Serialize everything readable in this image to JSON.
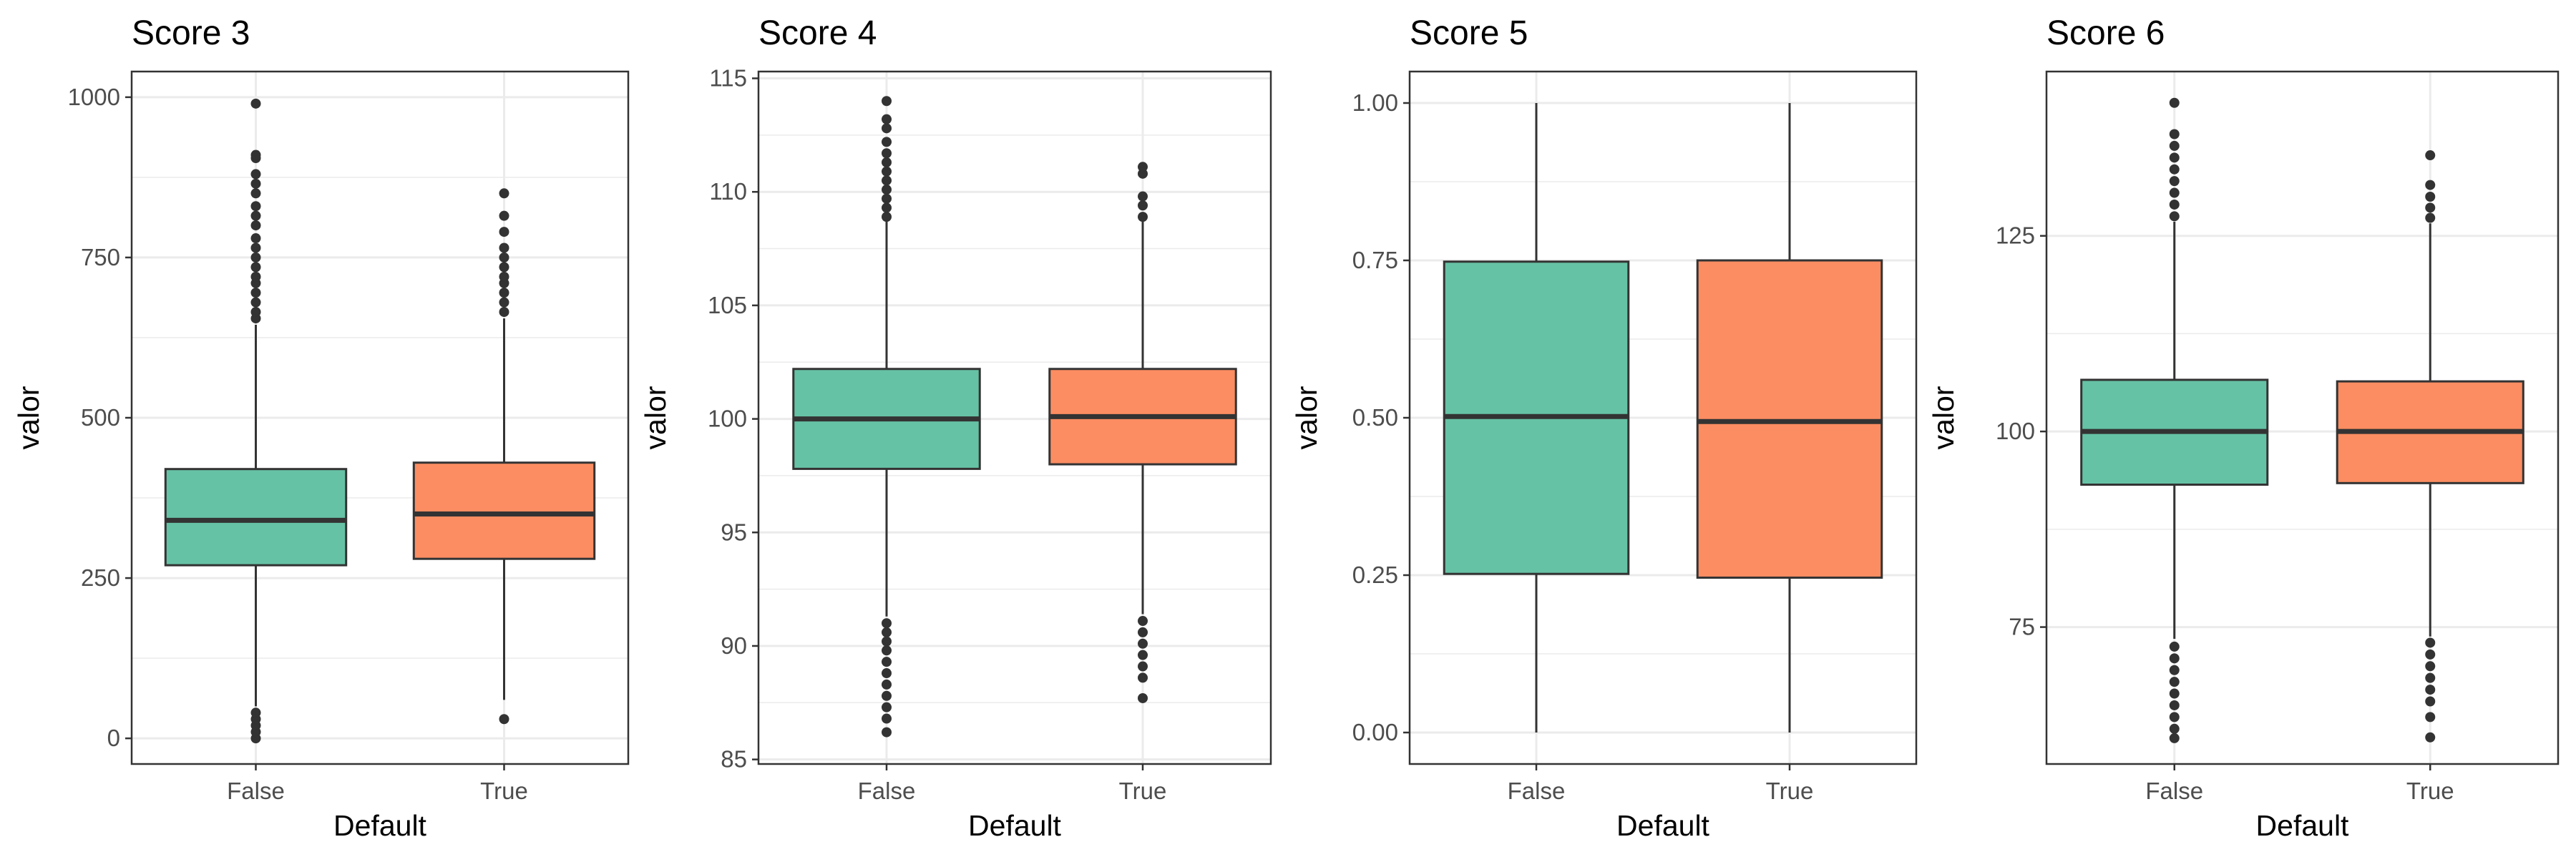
{
  "figure": {
    "fill_colors": {
      "False": "#66c2a5",
      "True": "#fc8d62"
    },
    "box_line_color": "#333333",
    "outlier_color": "#333333",
    "panel_border_color": "#333333",
    "grid_color": "#ebebeb"
  },
  "chart_data": [
    {
      "type": "boxplot",
      "title": "Score 3",
      "xlabel": "Default",
      "ylabel": "valor",
      "categories": [
        "False",
        "True"
      ],
      "ylim": [
        -40,
        1040
      ],
      "yticks": [
        0,
        250,
        500,
        750,
        1000
      ],
      "ytick_labels": [
        "0",
        "250",
        "500",
        "750",
        "1000"
      ],
      "grid": true,
      "boxes": [
        {
          "category": "False",
          "whisker_low": 50,
          "q1": 270,
          "median": 340,
          "q3": 420,
          "whisker_high": 645,
          "outliers": [
            0,
            10,
            20,
            30,
            40,
            655,
            665,
            680,
            695,
            710,
            720,
            735,
            750,
            765,
            780,
            800,
            815,
            830,
            850,
            865,
            880,
            905,
            910,
            990
          ]
        },
        {
          "category": "True",
          "whisker_low": 60,
          "q1": 280,
          "median": 350,
          "q3": 430,
          "whisker_high": 655,
          "outliers": [
            30,
            665,
            680,
            695,
            710,
            720,
            735,
            750,
            765,
            790,
            815,
            850
          ]
        }
      ]
    },
    {
      "type": "boxplot",
      "title": "Score 4",
      "xlabel": "Default",
      "ylabel": "valor",
      "categories": [
        "False",
        "True"
      ],
      "ylim": [
        84.8,
        115.3
      ],
      "yticks": [
        85,
        90,
        95,
        100,
        105,
        110,
        115
      ],
      "ytick_labels": [
        "85",
        "90",
        "95",
        "100",
        "105",
        "110",
        "115"
      ],
      "grid": true,
      "boxes": [
        {
          "category": "False",
          "whisker_low": 91.3,
          "q1": 97.8,
          "median": 100.0,
          "q3": 102.2,
          "whisker_high": 108.7,
          "outliers": [
            86.2,
            86.8,
            87.3,
            87.8,
            88.3,
            88.8,
            89.3,
            89.8,
            90.2,
            90.6,
            91.0,
            108.9,
            109.3,
            109.7,
            110.1,
            110.5,
            110.9,
            111.3,
            111.7,
            112.2,
            112.8,
            113.2,
            114.0
          ]
        },
        {
          "category": "True",
          "whisker_low": 91.4,
          "q1": 98.0,
          "median": 100.1,
          "q3": 102.2,
          "whisker_high": 108.7,
          "outliers": [
            87.7,
            88.6,
            89.1,
            89.6,
            90.1,
            90.6,
            91.1,
            108.9,
            109.4,
            109.8,
            110.8,
            111.1
          ]
        }
      ]
    },
    {
      "type": "boxplot",
      "title": "Score 5",
      "xlabel": "Default",
      "ylabel": "valor",
      "categories": [
        "False",
        "True"
      ],
      "ylim": [
        -0.05,
        1.05
      ],
      "yticks": [
        0.0,
        0.25,
        0.5,
        0.75,
        1.0
      ],
      "ytick_labels": [
        "0.00",
        "0.25",
        "0.50",
        "0.75",
        "1.00"
      ],
      "grid": true,
      "boxes": [
        {
          "category": "False",
          "whisker_low": 0.0,
          "q1": 0.252,
          "median": 0.502,
          "q3": 0.748,
          "whisker_high": 1.0,
          "outliers": []
        },
        {
          "category": "True",
          "whisker_low": 0.0,
          "q1": 0.246,
          "median": 0.494,
          "q3": 0.75,
          "whisker_high": 1.0,
          "outliers": []
        }
      ]
    },
    {
      "type": "boxplot",
      "title": "Score 6",
      "xlabel": "Default",
      "ylabel": "valor",
      "categories": [
        "False",
        "True"
      ],
      "ylim": [
        57.5,
        146
      ],
      "yticks": [
        75,
        100,
        125
      ],
      "ytick_labels": [
        "75",
        "100",
        "125"
      ],
      "grid": true,
      "boxes": [
        {
          "category": "False",
          "whisker_low": 73.5,
          "q1": 93.2,
          "median": 100.0,
          "q3": 106.6,
          "whisker_high": 126.8,
          "outliers": [
            60.8,
            62.0,
            63.5,
            65.0,
            66.5,
            68.0,
            69.5,
            71.0,
            72.5,
            127.5,
            129.0,
            130.5,
            132.0,
            133.5,
            135.0,
            136.5,
            138.0,
            142.0
          ]
        },
        {
          "category": "True",
          "whisker_low": 73.8,
          "q1": 93.4,
          "median": 100.0,
          "q3": 106.4,
          "whisker_high": 126.6,
          "outliers": [
            60.9,
            63.5,
            65.5,
            67.0,
            68.5,
            70.0,
            71.5,
            73.0,
            127.3,
            128.6,
            130.0,
            131.5,
            135.3
          ]
        }
      ]
    }
  ]
}
